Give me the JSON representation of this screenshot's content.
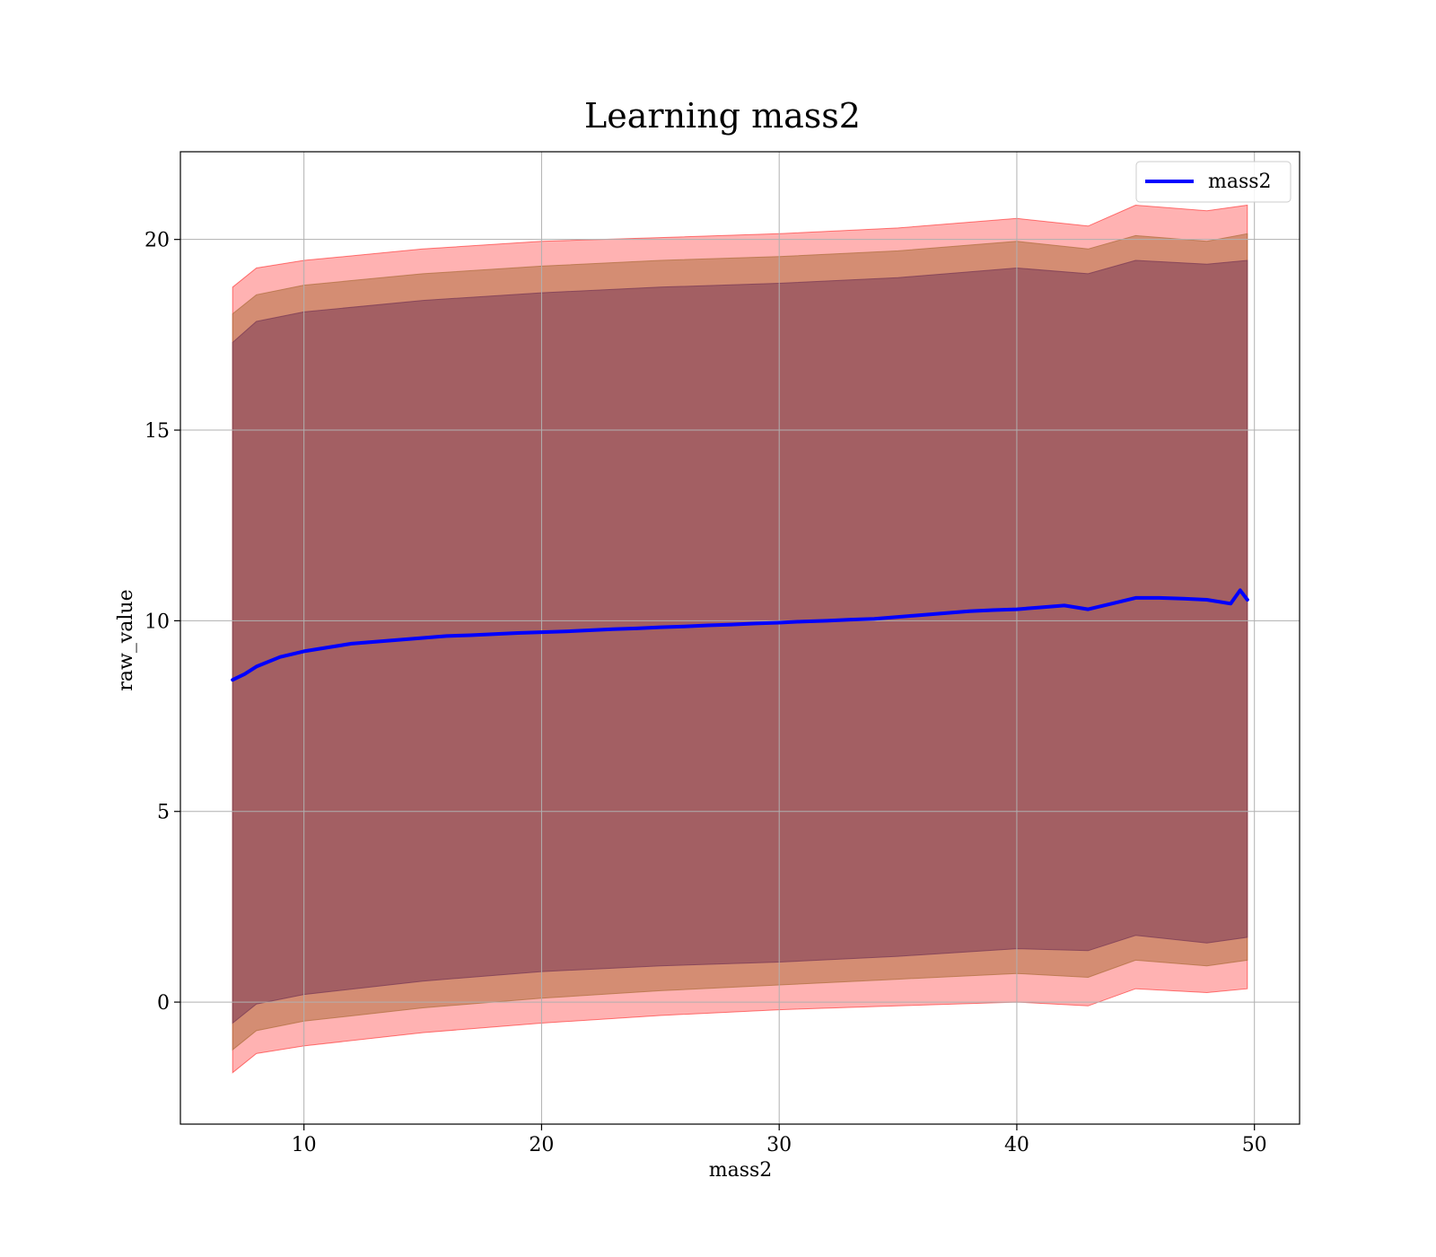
{
  "chart_data": {
    "type": "line",
    "title": "Learning mass2",
    "xlabel": "mass2",
    "ylabel": "raw_value",
    "xlim": [
      4.8,
      51.9
    ],
    "ylim": [
      -3.2,
      22.3
    ],
    "xticks": [
      10,
      20,
      30,
      40,
      50
    ],
    "yticks": [
      0,
      5,
      10,
      15,
      20
    ],
    "grid": true,
    "legend_position": "top-right",
    "line_color": "#0000ff",
    "series": [
      {
        "name": "mass2",
        "x": [
          7.0,
          7.5,
          8.0,
          9.0,
          10.0,
          11.0,
          12.0,
          13.0,
          14.0,
          15.0,
          16.0,
          17.0,
          18.0,
          19.0,
          20.0,
          21.0,
          22.0,
          23.0,
          24.0,
          25.0,
          26.0,
          27.0,
          28.0,
          29.0,
          30.0,
          31.0,
          32.0,
          33.0,
          34.0,
          35.0,
          36.0,
          37.0,
          38.0,
          39.0,
          40.0,
          41.0,
          42.0,
          43.0,
          44.0,
          45.0,
          46.0,
          47.0,
          48.0,
          49.0,
          49.4,
          49.7
        ],
        "y": [
          8.45,
          8.6,
          8.8,
          9.05,
          9.2,
          9.3,
          9.4,
          9.45,
          9.5,
          9.55,
          9.6,
          9.62,
          9.65,
          9.68,
          9.7,
          9.72,
          9.75,
          9.78,
          9.8,
          9.83,
          9.85,
          9.88,
          9.9,
          9.93,
          9.95,
          9.98,
          10.0,
          10.03,
          10.05,
          10.1,
          10.15,
          10.2,
          10.25,
          10.28,
          10.3,
          10.35,
          10.4,
          10.3,
          10.45,
          10.6,
          10.6,
          10.58,
          10.55,
          10.45,
          10.8,
          10.55
        ]
      }
    ],
    "bands": [
      {
        "color": "#ff0000",
        "opacity": 0.3,
        "x": [
          7.0,
          8.0,
          10.0,
          15.0,
          20.0,
          25.0,
          30.0,
          35.0,
          40.0,
          43.0,
          45.0,
          48.0,
          49.7
        ],
        "lower": [
          -1.85,
          -1.35,
          -1.15,
          -0.8,
          -0.55,
          -0.35,
          -0.2,
          -0.1,
          0.0,
          -0.1,
          0.35,
          0.25,
          0.35
        ],
        "upper": [
          18.75,
          19.25,
          19.45,
          19.75,
          19.95,
          20.05,
          20.15,
          20.3,
          20.55,
          20.35,
          20.9,
          20.75,
          20.9
        ]
      },
      {
        "color": "#b07040",
        "opacity": 0.55,
        "x": [
          7.0,
          8.0,
          10.0,
          15.0,
          20.0,
          25.0,
          30.0,
          35.0,
          40.0,
          43.0,
          45.0,
          48.0,
          49.7
        ],
        "lower": [
          -1.25,
          -0.75,
          -0.5,
          -0.15,
          0.1,
          0.3,
          0.45,
          0.6,
          0.75,
          0.65,
          1.1,
          0.95,
          1.1
        ],
        "upper": [
          18.05,
          18.55,
          18.8,
          19.1,
          19.3,
          19.45,
          19.55,
          19.7,
          19.95,
          19.75,
          20.1,
          19.95,
          20.15
        ]
      },
      {
        "color": "#7a3a56",
        "opacity": 0.55,
        "x": [
          7.0,
          8.0,
          10.0,
          15.0,
          20.0,
          25.0,
          30.0,
          35.0,
          40.0,
          43.0,
          45.0,
          48.0,
          49.7
        ],
        "lower": [
          -0.55,
          -0.05,
          0.2,
          0.55,
          0.8,
          0.95,
          1.05,
          1.2,
          1.4,
          1.35,
          1.75,
          1.55,
          1.7
        ],
        "upper": [
          17.3,
          17.85,
          18.1,
          18.4,
          18.6,
          18.75,
          18.85,
          19.0,
          19.25,
          19.1,
          19.45,
          19.35,
          19.45
        ]
      }
    ]
  }
}
